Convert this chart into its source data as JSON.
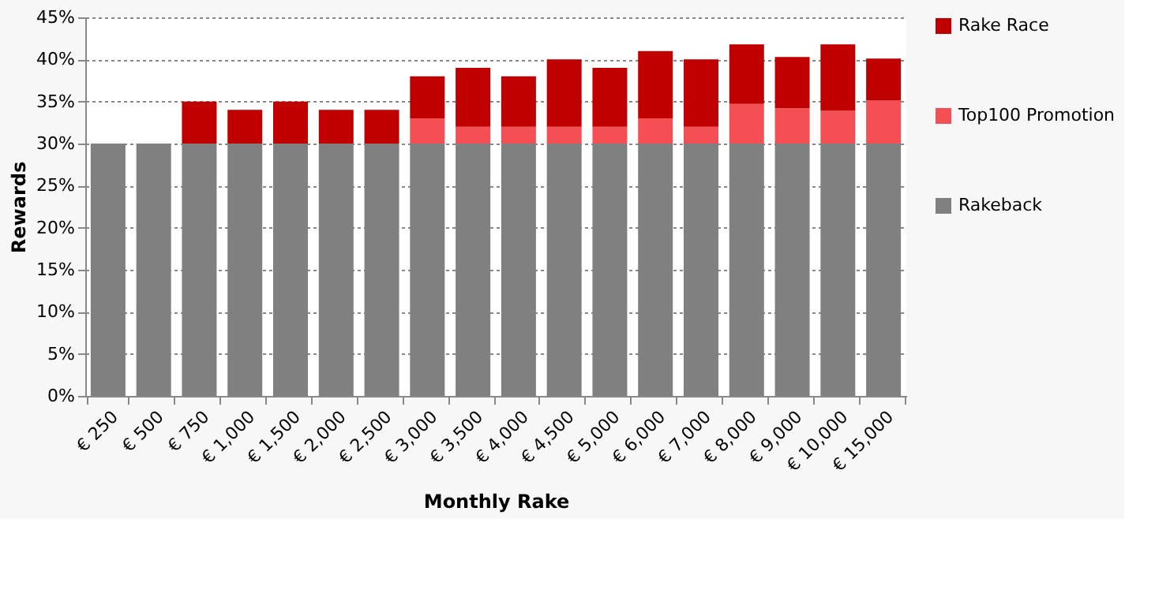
{
  "chart_data": {
    "type": "bar",
    "stacked": true,
    "xlabel": "Monthly Rake",
    "ylabel": "Rewards",
    "categories": [
      "€ 250",
      "€ 500",
      "€ 750",
      "€ 1,000",
      "€ 1,500",
      "€ 2,000",
      "€ 2,500",
      "€ 3,000",
      "€ 3,500",
      "€ 4,000",
      "€ 4,500",
      "€ 5,000",
      "€ 6,000",
      "€ 7,000",
      "€ 8,000",
      "€ 9,000",
      "€ 10,000",
      "€ 15,000"
    ],
    "series": [
      {
        "name": "Rakeback",
        "color": "#808080",
        "values": [
          30,
          30,
          30,
          30,
          30,
          30,
          30,
          30,
          30,
          30,
          30,
          30,
          30,
          30,
          30,
          30,
          30,
          30
        ]
      },
      {
        "name": "Top100 Promotion",
        "color": "#f44f55",
        "values": [
          null,
          null,
          null,
          null,
          null,
          null,
          null,
          3,
          2,
          2,
          2,
          2,
          3,
          2,
          4.7,
          4.2,
          3.9,
          5.1
        ]
      },
      {
        "name": "Rake Race",
        "color": "#c00000",
        "values": [
          null,
          null,
          5,
          4,
          5,
          4,
          4,
          5,
          7,
          6,
          8,
          7,
          8,
          8,
          7.1,
          6.1,
          7.9,
          5
        ]
      }
    ],
    "ylim": [
      0,
      45
    ],
    "yticks": [
      {
        "value": 0,
        "label": "0%"
      },
      {
        "value": 5,
        "label": "5%"
      },
      {
        "value": 10,
        "label": "10%"
      },
      {
        "value": 15,
        "label": "15%"
      },
      {
        "value": 20,
        "label": "20%"
      },
      {
        "value": 25,
        "label": "25%"
      },
      {
        "value": 30,
        "label": "30%"
      },
      {
        "value": 35,
        "label": "35%"
      },
      {
        "value": 40,
        "label": "40%"
      },
      {
        "value": 45,
        "label": "45%"
      }
    ],
    "grid": "y",
    "legend": "right"
  }
}
